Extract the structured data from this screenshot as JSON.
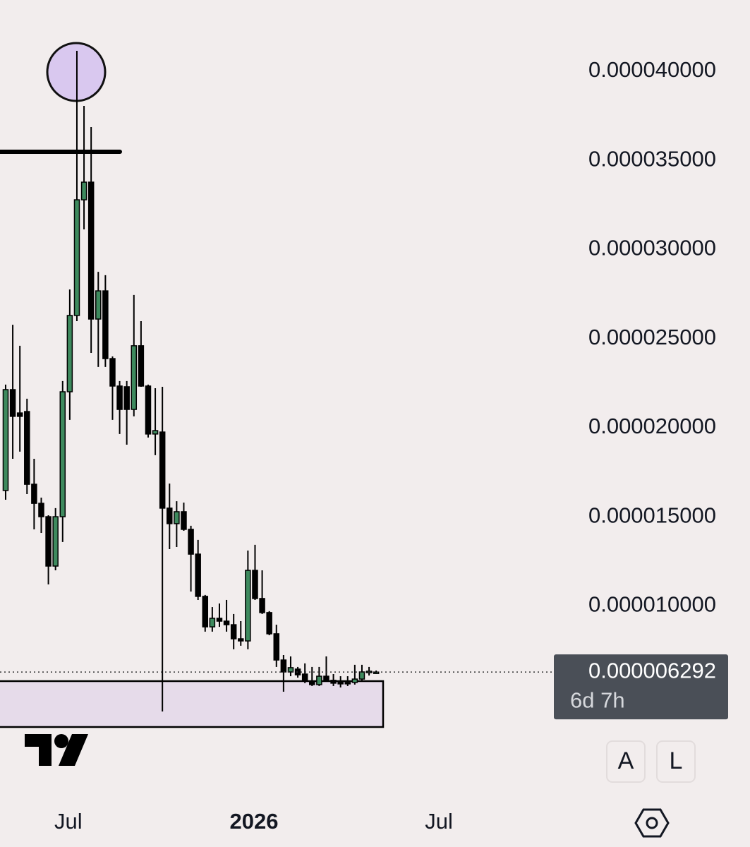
{
  "chart_data": {
    "type": "candlestick",
    "x": [
      0,
      1,
      2,
      3,
      4,
      5,
      6,
      7,
      8,
      9,
      10,
      11,
      12,
      13,
      14,
      15,
      16,
      17,
      18,
      19,
      20,
      21,
      22,
      23,
      24,
      25,
      26,
      27,
      28,
      29,
      30,
      31,
      32,
      33,
      34,
      35,
      36,
      37,
      38,
      39,
      40,
      41,
      42,
      43,
      44,
      45,
      46,
      47,
      48,
      49,
      50,
      51,
      52
    ],
    "open": [
      1.648e-05,
      2.214e-05,
      2.083e-05,
      2.091e-05,
      1.683e-05,
      1.576e-05,
      1.501e-05,
      1.224e-05,
      1.501e-05,
      2.202e-05,
      2.63e-05,
      3.279e-05,
      3.378e-05,
      2.61e-05,
      2.768e-05,
      2.388e-05,
      2.234e-05,
      2.23e-05,
      2.103e-05,
      2.46e-05,
      2.234e-05,
      1.965e-05,
      1.976e-05,
      1.549e-05,
      1.462e-05,
      1.529e-05,
      1.43e-05,
      1.291e-05,
      1.054e-05,
      8.83e-06,
      9.31e-06,
      9.15e-06,
      8.95e-06,
      8.16e-06,
      8.04e-06,
      1.2e-05,
      1.042e-05,
      9.63e-06,
      8.44e-06,
      6.97e-06,
      6.3e-06,
      6.46e-06,
      6.18e-06,
      5.79e-06,
      5.59e-06,
      6.06e-06,
      5.83e-06,
      5.75e-06,
      5.71e-06,
      5.71e-06,
      5.9e-06,
      6.3e-06,
      6.26e-06
    ],
    "high": [
      2.242e-05,
      2.578e-05,
      2.46e-05,
      2.163e-05,
      1.826e-05,
      1.608e-05,
      1.509e-05,
      1.549e-05,
      2.262e-05,
      2.776e-05,
      4.115e-05,
      3.806e-05,
      3.687e-05,
      2.875e-05,
      2.856e-05,
      2.4e-05,
      2.262e-05,
      2.262e-05,
      2.745e-05,
      2.598e-05,
      2.242e-05,
      2.222e-05,
      2.23e-05,
      1.687e-05,
      1.588e-05,
      1.58e-05,
      1.45e-05,
      1.371e-05,
      1.062e-05,
      9.94e-06,
      1.014e-05,
      1.034e-05,
      9.55e-06,
      9.15e-06,
      1.311e-05,
      1.343e-05,
      1.2e-05,
      9.71e-06,
      8.95e-06,
      7.25e-06,
      7.17e-06,
      6.58e-06,
      6.78e-06,
      6.58e-06,
      6.58e-06,
      7.17e-06,
      6.18e-06,
      6.06e-06,
      6.06e-06,
      6.7e-06,
      6.7e-06,
      6.58e-06,
      6.38e-06
    ],
    "low": [
      1.596e-05,
      1.826e-05,
      1.866e-05,
      1.628e-05,
      1.43e-05,
      1.41e-05,
      1.121e-05,
      1.2e-05,
      1.359e-05,
      2.044e-05,
      2.598e-05,
      3.113e-05,
      2.42e-05,
      2.341e-05,
      2.341e-05,
      2.044e-05,
      1.965e-05,
      1.905e-05,
      2.064e-05,
      2.23e-05,
      1.945e-05,
      1.846e-05,
      4.08e-06,
      1.319e-05,
      1.331e-05,
      1.422e-05,
      1.081e-05,
      1.034e-05,
      8.56e-06,
      8.56e-06,
      8.83e-06,
      8.56e-06,
      7.57e-06,
      7.77e-06,
      7.57e-06,
      1.034e-05,
      9.55e-06,
      8.36e-06,
      6.58e-06,
      5.19e-06,
      6.06e-06,
      5.98e-06,
      5.67e-06,
      5.51e-06,
      5.51e-06,
      5.75e-06,
      5.51e-06,
      5.43e-06,
      5.51e-06,
      5.59e-06,
      5.83e-06,
      6.1e-06,
      6.18e-06
    ],
    "close": [
      2.214e-05,
      2.064e-05,
      2.064e-05,
      1.683e-05,
      1.576e-05,
      1.501e-05,
      1.224e-05,
      1.501e-05,
      2.202e-05,
      2.63e-05,
      3.279e-05,
      3.378e-05,
      2.61e-05,
      2.768e-05,
      2.388e-05,
      2.234e-05,
      2.103e-05,
      2.103e-05,
      2.46e-05,
      2.234e-05,
      1.965e-05,
      1.984e-05,
      1.549e-05,
      1.462e-05,
      1.529e-05,
      1.43e-05,
      1.291e-05,
      1.054e-05,
      8.83e-06,
      9.31e-06,
      9.15e-06,
      8.95e-06,
      8.16e-06,
      8.04e-06,
      1.2e-05,
      1.042e-05,
      9.63e-06,
      8.44e-06,
      6.97e-06,
      6.3e-06,
      6.54e-06,
      6.14e-06,
      5.79e-06,
      5.59e-06,
      6.06e-06,
      5.83e-06,
      5.67e-06,
      5.63e-06,
      5.67e-06,
      5.9e-06,
      6.3e-06,
      6.34e-06,
      6.292e-06
    ],
    "up_color": "#3e8a5e",
    "down_color": "#000000",
    "xlim": [
      -0.79,
      76.44
    ],
    "ylim": [
      -7.5e-07,
      4.4e-05
    ],
    "yticks": [
      {
        "value": 4e-05,
        "label": "0.000040000"
      },
      {
        "value": 3.5e-05,
        "label": "0.000035000"
      },
      {
        "value": 3e-05,
        "label": "0.000030000"
      },
      {
        "value": 2.5e-05,
        "label": "0.000025000"
      },
      {
        "value": 2e-05,
        "label": "0.000020000"
      },
      {
        "value": 1.5e-05,
        "label": "0.000015000"
      },
      {
        "value": 1e-05,
        "label": "0.000010000"
      }
    ],
    "xticks": [
      {
        "value": 8.8,
        "label": "Jul"
      },
      {
        "value": 34.85,
        "label": "2026"
      },
      {
        "value": 60.8,
        "label": "Jul"
      }
    ],
    "last_price": 6.292e-06,
    "last_price_label": "0.000006292",
    "countdown": "6d 7h",
    "buttons": [
      "A",
      "L"
    ]
  }
}
